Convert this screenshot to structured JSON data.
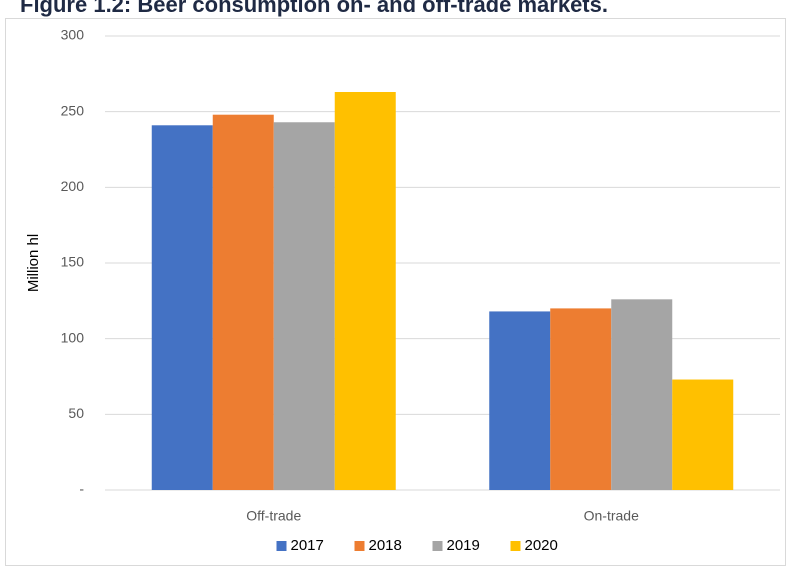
{
  "chart_data": {
    "type": "bar",
    "title": "Figure 1.2: Beer consumption on- and off-trade markets.",
    "y_label": "Million hl",
    "categories": [
      "Off-trade",
      "On-trade"
    ],
    "series": [
      {
        "name": "2017",
        "color": "#4472c4",
        "values": [
          241,
          118
        ]
      },
      {
        "name": "2018",
        "color": "#ed7d31",
        "values": [
          248,
          120
        ]
      },
      {
        "name": "2019",
        "color": "#a5a5a5",
        "values": [
          243,
          126
        ]
      },
      {
        "name": "2020",
        "color": "#ffc000",
        "values": [
          263,
          73
        ]
      }
    ],
    "ylim": [
      0,
      300
    ],
    "yticks": [
      {
        "value": 0,
        "label": "-"
      },
      50,
      100,
      150,
      200,
      250,
      300
    ],
    "grid": true,
    "legend": "bottom"
  }
}
